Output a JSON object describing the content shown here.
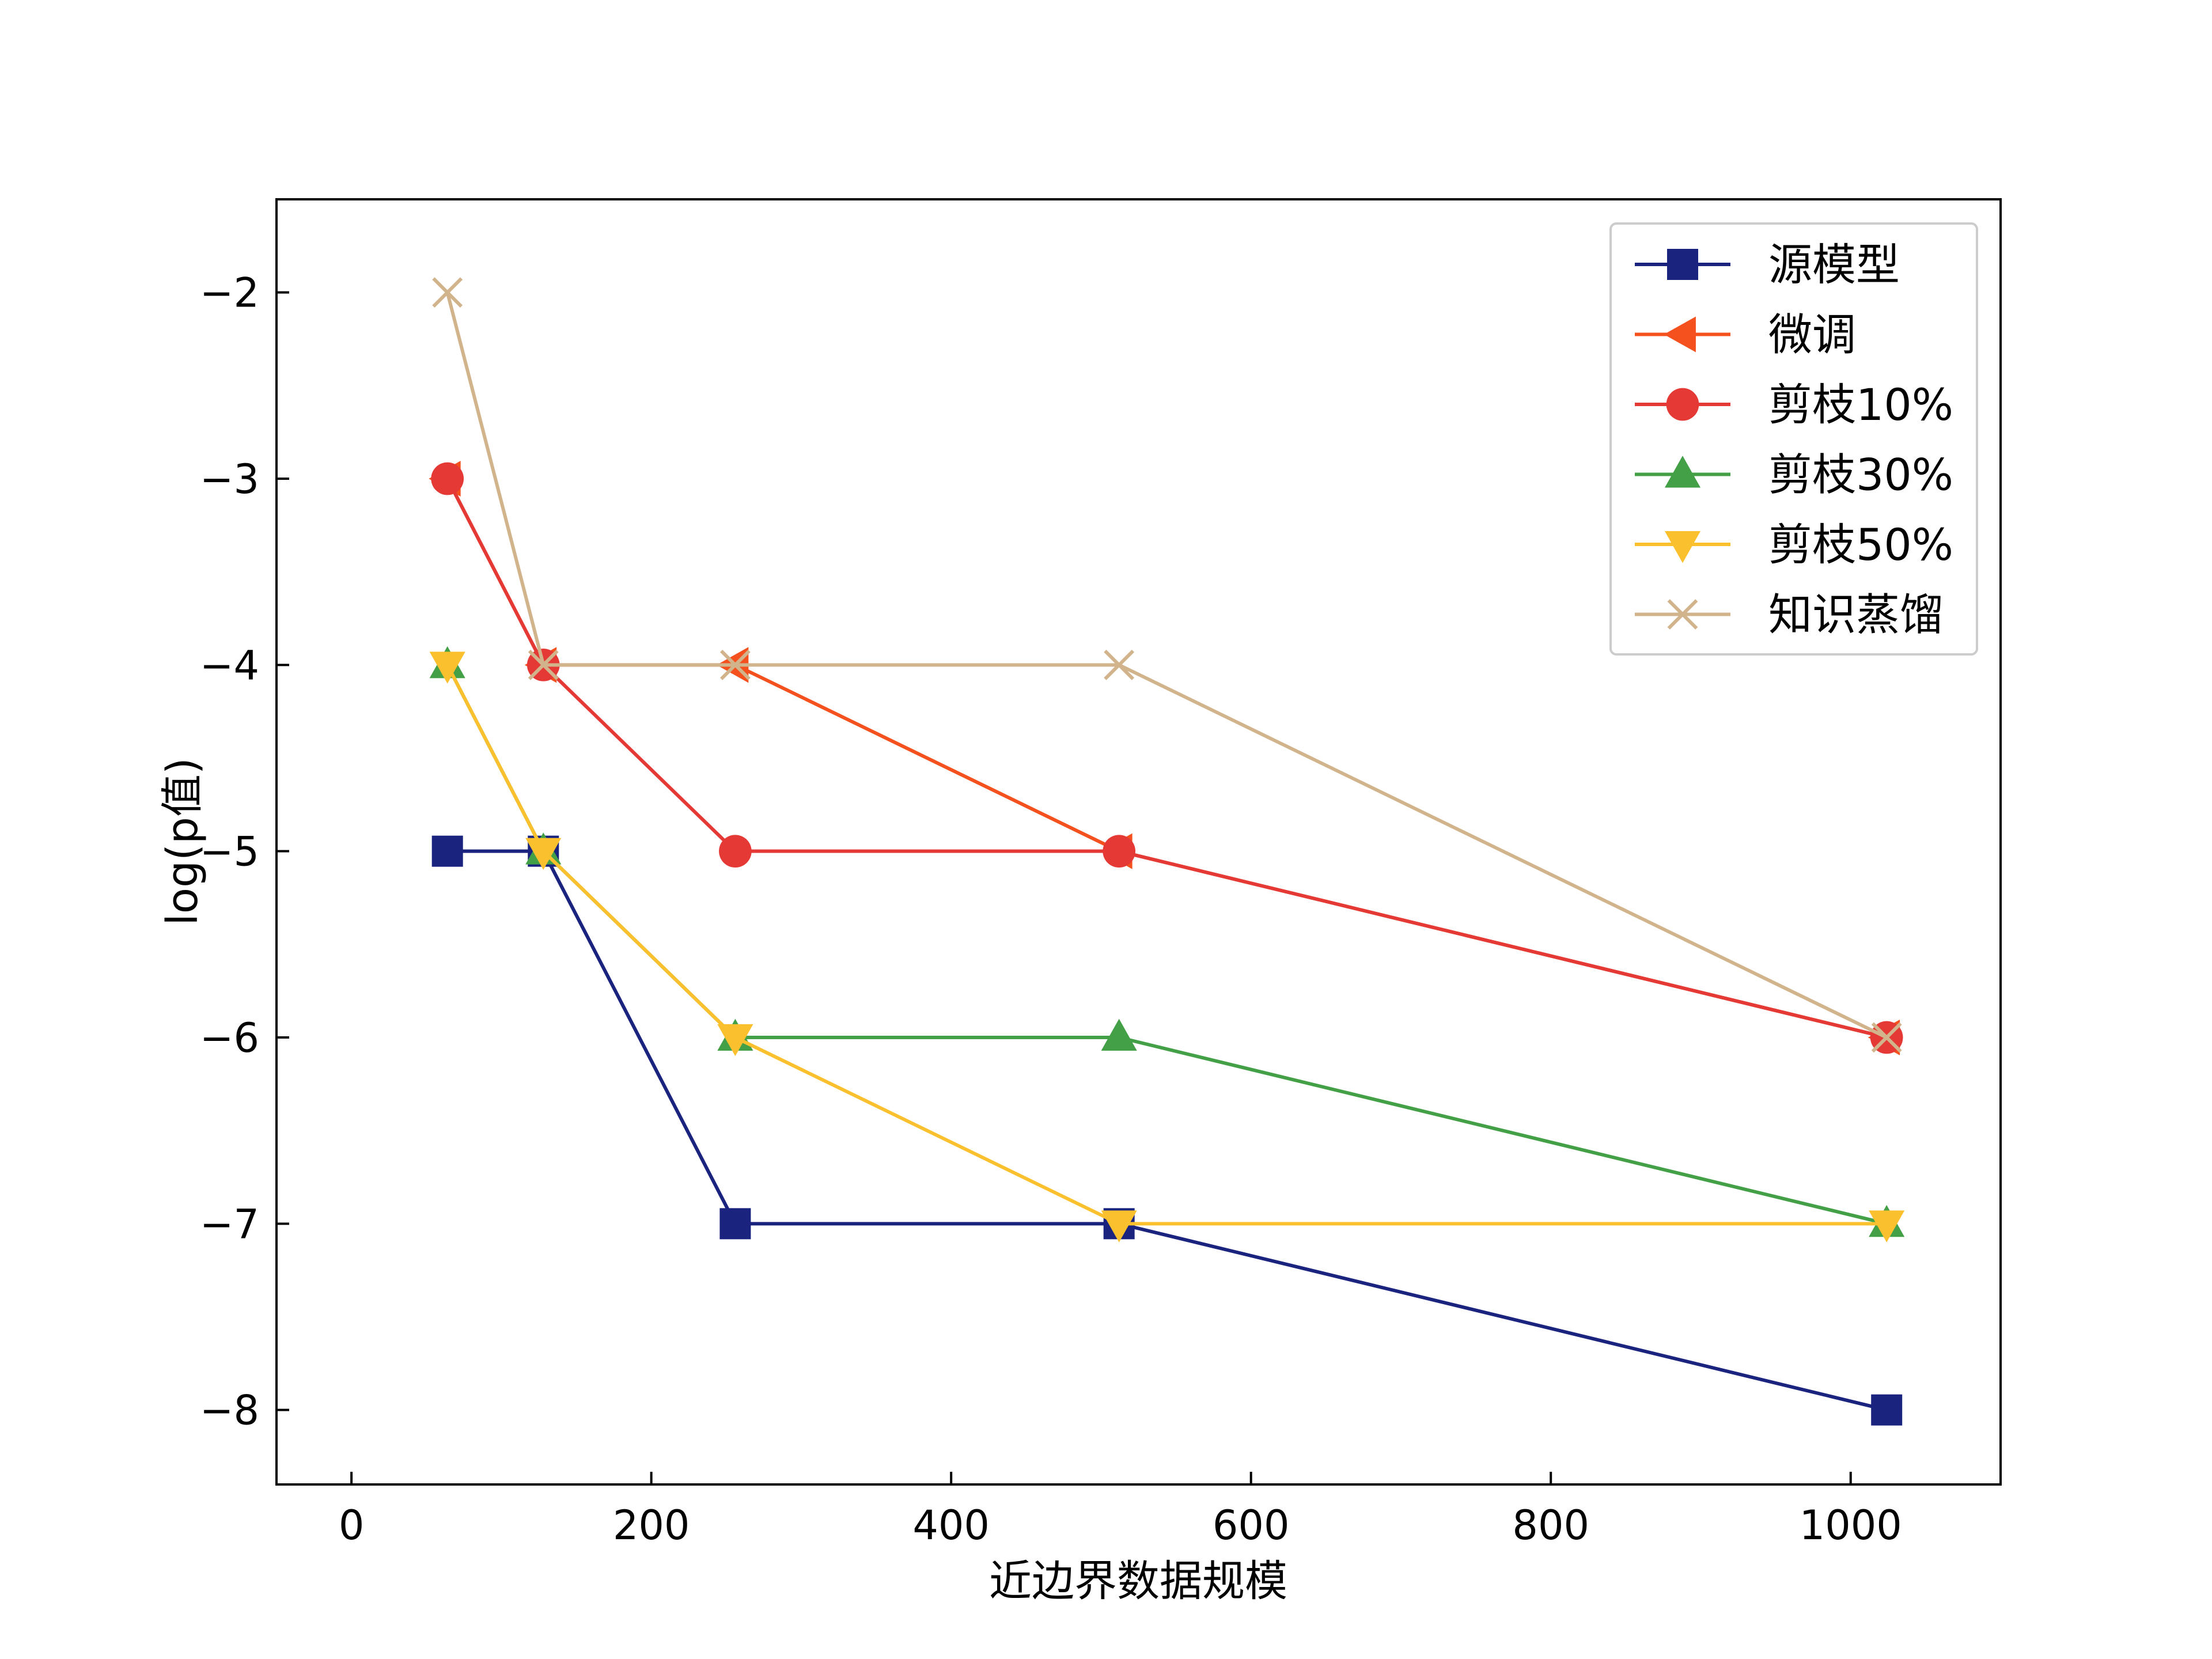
{
  "chart_data": {
    "type": "line",
    "title": "",
    "xlabel": "近边界数据规模",
    "ylabel": "log(p值)",
    "xlim": [
      -50,
      1100
    ],
    "ylim": [
      -8.4,
      -1.5
    ],
    "x_ticks": [
      0,
      200,
      400,
      600,
      800,
      1000
    ],
    "y_ticks": [
      -8,
      -7,
      -6,
      -5,
      -4,
      -3,
      -2
    ],
    "x_tick_labels": [
      "0",
      "200",
      "400",
      "600",
      "800",
      "1000"
    ],
    "y_tick_labels": [
      "−8",
      "−7",
      "−6",
      "−5",
      "−4",
      "−3",
      "−2"
    ],
    "grid": false,
    "legend_position": "top-right",
    "x": [
      64,
      128,
      256,
      512,
      1024
    ],
    "series": [
      {
        "name": "源模型",
        "values": [
          -5,
          -5,
          -7,
          -7,
          -8
        ],
        "color": "#1a237e",
        "marker": "square"
      },
      {
        "name": "微调",
        "values": [
          -3,
          -4,
          -4,
          -5,
          -6
        ],
        "color": "#f4511e",
        "marker": "triangle-left"
      },
      {
        "name": "剪枝10%",
        "values": [
          -3,
          -4,
          -5,
          -5,
          -6
        ],
        "color": "#e53935",
        "marker": "circle"
      },
      {
        "name": "剪枝30%",
        "values": [
          -4,
          -5,
          -6,
          -6,
          -7
        ],
        "color": "#43a047",
        "marker": "triangle-up"
      },
      {
        "name": "剪枝50%",
        "values": [
          -4,
          -5,
          -6,
          -7,
          -7
        ],
        "color": "#fbc02d",
        "marker": "triangle-down"
      },
      {
        "name": "知识蒸馏",
        "values": [
          -2,
          -4,
          -4,
          -4,
          -6
        ],
        "color": "#d2b48c",
        "marker": "x"
      }
    ]
  }
}
